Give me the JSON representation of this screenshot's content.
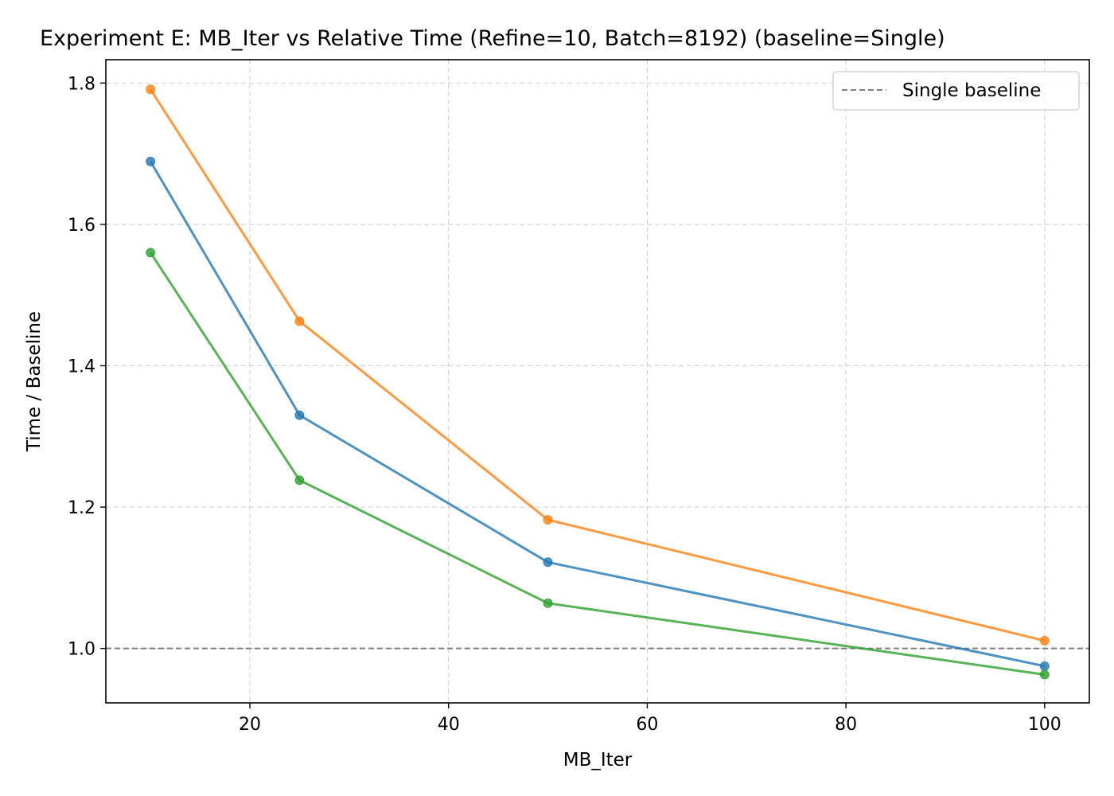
{
  "chart_data": {
    "type": "line",
    "title": "Experiment E: MB_Iter vs Relative Time (Refine=10, Batch=8192) (baseline=Single)",
    "xlabel": "MB_Iter",
    "ylabel": "Time / Baseline",
    "xlim": [
      5.5,
      104.5
    ],
    "ylim": [
      0.923,
      1.833
    ],
    "xticks": [
      20,
      40,
      60,
      80,
      100
    ],
    "xtick_labels": [
      "20",
      "40",
      "60",
      "80",
      "100"
    ],
    "yticks": [
      1.0,
      1.2,
      1.4,
      1.6,
      1.8
    ],
    "ytick_labels": [
      "1.0",
      "1.2",
      "1.4",
      "1.6",
      "1.8"
    ],
    "grid": true,
    "legend_position": "top-right",
    "x": [
      10,
      25,
      50,
      100
    ],
    "series": [
      {
        "color": "#1f77b4",
        "values": [
          1.689,
          1.33,
          1.122,
          0.975
        ]
      },
      {
        "color": "#ff7f0e",
        "values": [
          1.791,
          1.463,
          1.182,
          1.011
        ]
      },
      {
        "color": "#2ca02c",
        "values": [
          1.56,
          1.238,
          1.064,
          0.963
        ]
      }
    ],
    "reference_line": {
      "label": "Single baseline",
      "y": 1.0,
      "color": "#808080",
      "style": "dashed"
    }
  }
}
